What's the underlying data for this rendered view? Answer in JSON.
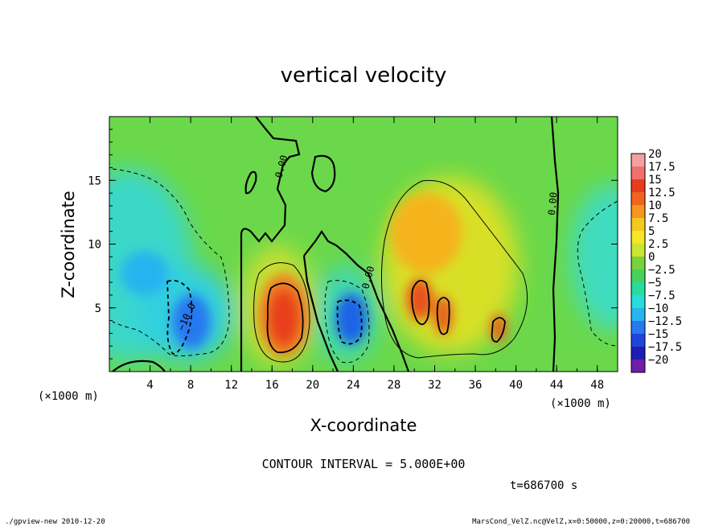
{
  "chart_data": {
    "type": "heatmap",
    "title": "vertical velocity",
    "xlabel": "X-coordinate",
    "ylabel": "Z-coordinate",
    "x_unit_left": "(×1000 m)",
    "x_unit_right": "(×1000 m)",
    "xlim": [
      0,
      50
    ],
    "ylim": [
      0,
      20
    ],
    "x_ticks": [
      4,
      8,
      12,
      16,
      20,
      24,
      28,
      32,
      36,
      40,
      44,
      48
    ],
    "y_ticks": [
      5,
      10,
      15
    ],
    "colorbar": {
      "levels": [
        "20",
        "17.5",
        "15",
        "12.5",
        "10",
        "7.5",
        "5",
        "2.5",
        "0",
        "−2.5",
        "−5",
        "−7.5",
        "−10",
        "−12.5",
        "−15",
        "−17.5",
        "−20"
      ],
      "colors": [
        "#f5a0a0",
        "#f07070",
        "#e83c1e",
        "#f0641e",
        "#f5961e",
        "#f5c81e",
        "#f5e628",
        "#c8e632",
        "#78d23c",
        "#46d25a",
        "#28dca0",
        "#28dcdc",
        "#28b4f0",
        "#2878f0",
        "#1e46dc",
        "#1e1eb4",
        "#6e1eaa"
      ]
    },
    "contour_labels": [
      "0.00",
      "0.00",
      "0.00",
      "−10.0"
    ],
    "contour_interval_text": "CONTOUR INTERVAL = 5.000E+00",
    "time_text": "t=686700 s",
    "features": [
      {
        "kind": "updraft",
        "x": 17.2,
        "z": 4.5,
        "w": 15
      },
      {
        "kind": "updraft",
        "x": 30.5,
        "z": 6.0,
        "w": 12
      },
      {
        "kind": "updraft",
        "x": 33.0,
        "z": 4.5,
        "w": 11
      },
      {
        "kind": "updraft",
        "x": 38.5,
        "z": 3.5,
        "w": 11
      },
      {
        "kind": "updraft",
        "x": 31.0,
        "z": 10.0,
        "w": 8
      },
      {
        "kind": "downdraft",
        "x": 23.2,
        "z": 4.0,
        "w": -13
      },
      {
        "kind": "downdraft",
        "x": 7.0,
        "z": 4.0,
        "w": -13
      },
      {
        "kind": "downdraft",
        "x": 4.0,
        "z": 9.0,
        "w": -7
      }
    ]
  },
  "footer": {
    "left": "./gpview-new   2010-12-20",
    "right": "MarsCond_VelZ.nc@VelZ,x=0:50000,z=0:20000,t=686700"
  }
}
